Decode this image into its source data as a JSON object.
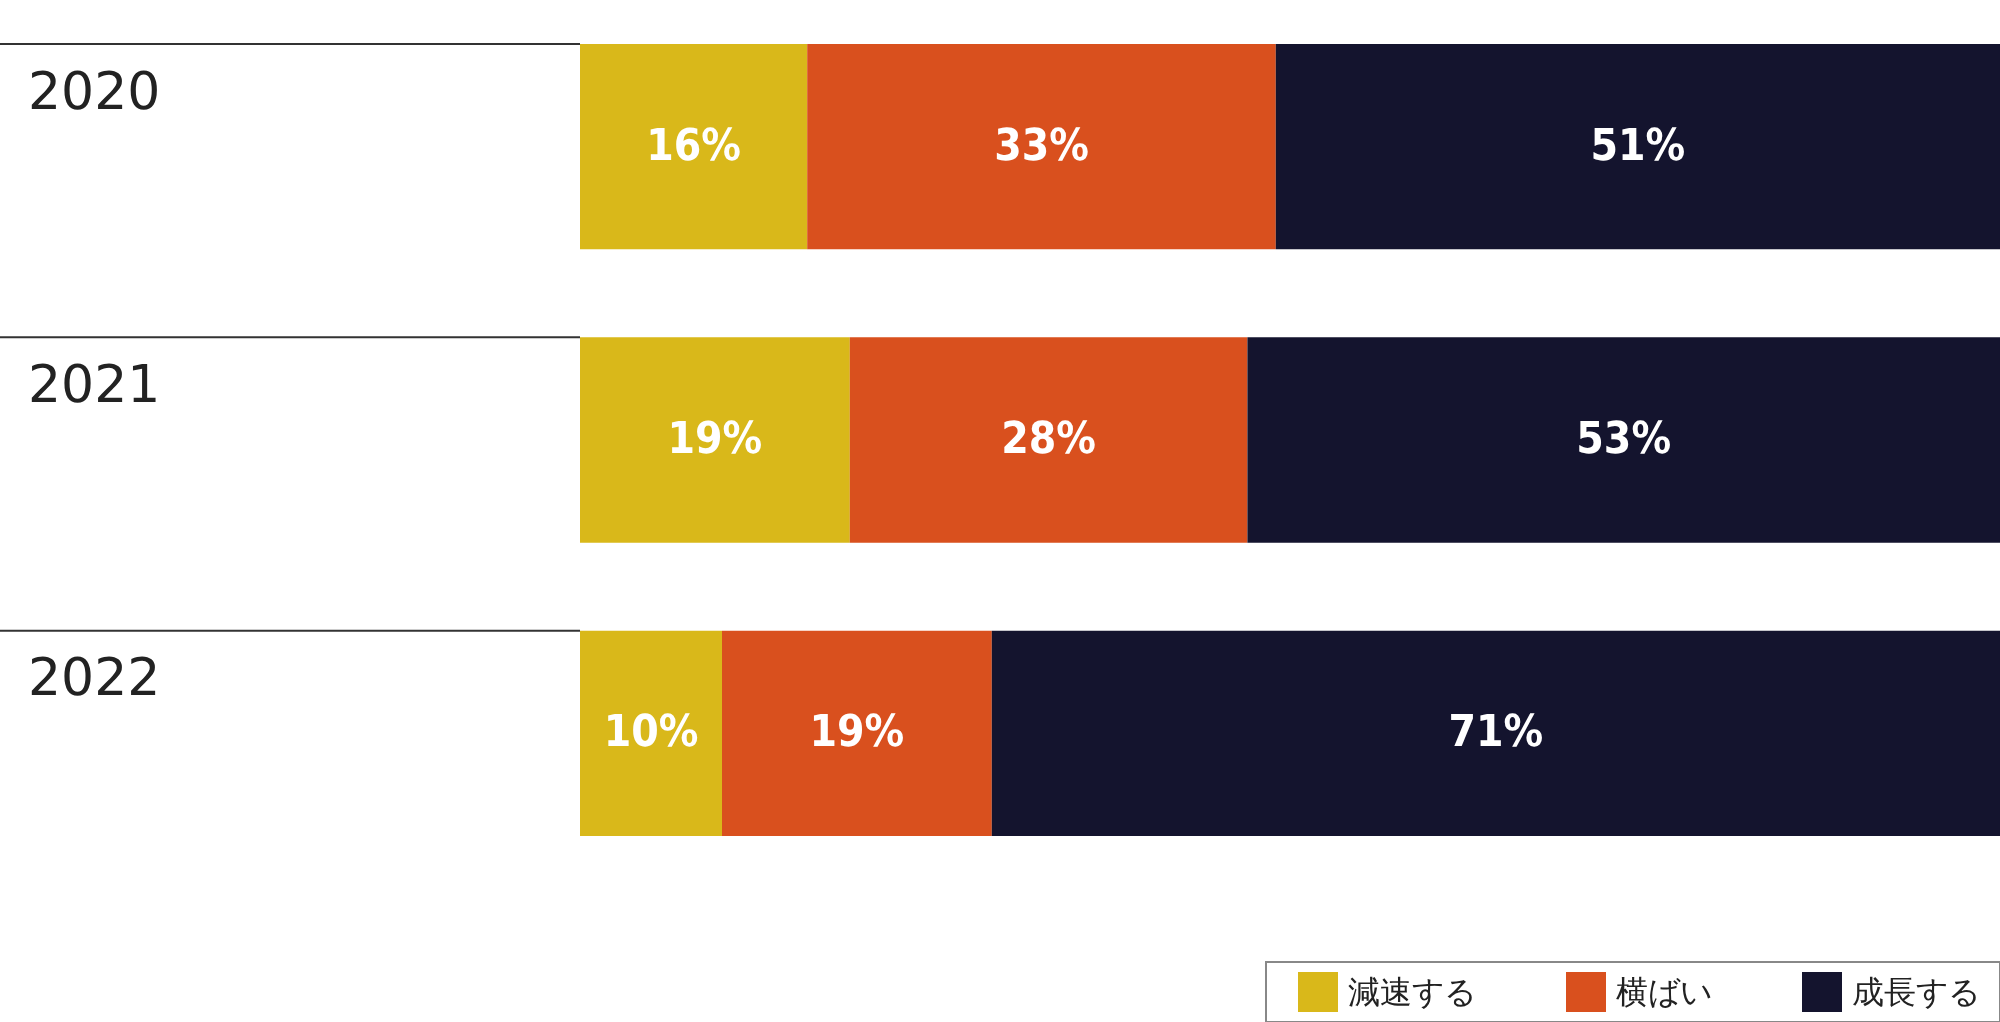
{
  "chart_data": {
    "type": "bar",
    "orientation": "horizontal",
    "stacked": true,
    "categories": [
      "2020",
      "2021",
      "2022"
    ],
    "series": [
      {
        "name": "減速する",
        "color": "#d9b81a",
        "values": [
          16,
          19,
          10
        ],
        "value_labels": [
          "16%",
          "19%",
          "10%"
        ]
      },
      {
        "name": "横ばい",
        "color": "#d9501e",
        "values": [
          33,
          28,
          19
        ],
        "value_labels": [
          "33%",
          "28%",
          "19%"
        ]
      },
      {
        "name": "成長する",
        "color": "#14142e",
        "values": [
          51,
          53,
          71
        ],
        "value_labels": [
          "51%",
          "53%",
          "71%"
        ]
      }
    ],
    "legend": "bottom right"
  }
}
